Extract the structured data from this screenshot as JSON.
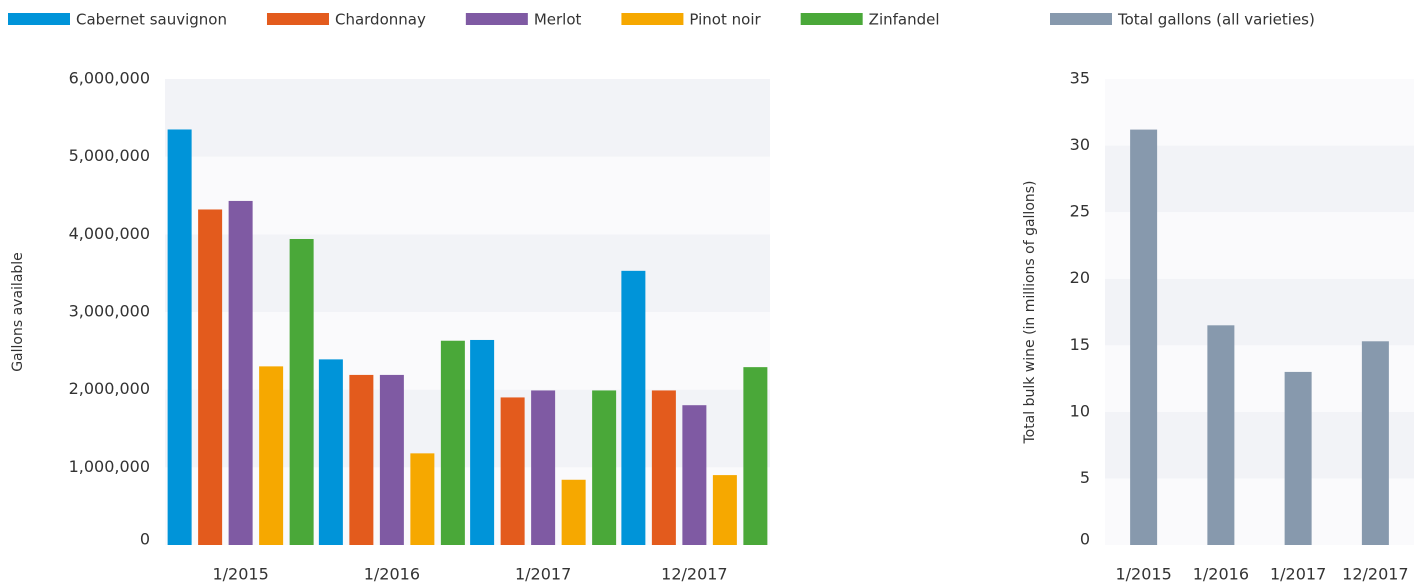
{
  "chart_data": [
    {
      "type": "bar",
      "y_label": "Gallons available",
      "categories": [
        "1/2015",
        "1/2016",
        "1/2017",
        "12/2017"
      ],
      "series": [
        {
          "name": "Cabernet sauvignon",
          "color": "#0094d9",
          "values": [
            5350000,
            2390000,
            2640000,
            3530000
          ]
        },
        {
          "name": "Chardonnay",
          "color": "#e35b1d",
          "values": [
            4320000,
            2190000,
            1900000,
            1990000
          ]
        },
        {
          "name": "Merlot",
          "color": "#7f5aa3",
          "values": [
            4430000,
            2190000,
            1990000,
            1800000
          ]
        },
        {
          "name": "Pinot noir",
          "color": "#f6a800",
          "values": [
            2300000,
            1180000,
            840000,
            900000
          ]
        },
        {
          "name": "Zinfandel",
          "color": "#4aa839",
          "values": [
            3940000,
            2630000,
            1990000,
            2290000
          ]
        }
      ],
      "ylim": [
        0,
        6000000
      ],
      "yticks": [
        0,
        {
          "value": 1000000,
          "label": "1,000,000"
        },
        {
          "value": 2000000,
          "label": "2,000,000"
        },
        {
          "value": 3000000,
          "label": "3,000,000"
        },
        {
          "value": 4000000,
          "label": "4,000,000"
        },
        {
          "value": 5000000,
          "label": "5,000,000"
        },
        {
          "value": 6000000,
          "label": "6,000,000"
        }
      ],
      "grid": true
    },
    {
      "type": "bar",
      "y_label": "Total bulk wine (in millions of gallons)",
      "categories": [
        "1/2015",
        "1/2016",
        "1/2017",
        "12/2017"
      ],
      "series": [
        {
          "name": "Total gallons (all varieties)",
          "color": "#8799ad",
          "values": [
            31.2,
            16.5,
            13.0,
            15.3
          ]
        }
      ],
      "ylim": [
        0,
        35
      ],
      "yticks": [
        0,
        5,
        10,
        15,
        20,
        25,
        30,
        35
      ],
      "grid": true
    }
  ]
}
